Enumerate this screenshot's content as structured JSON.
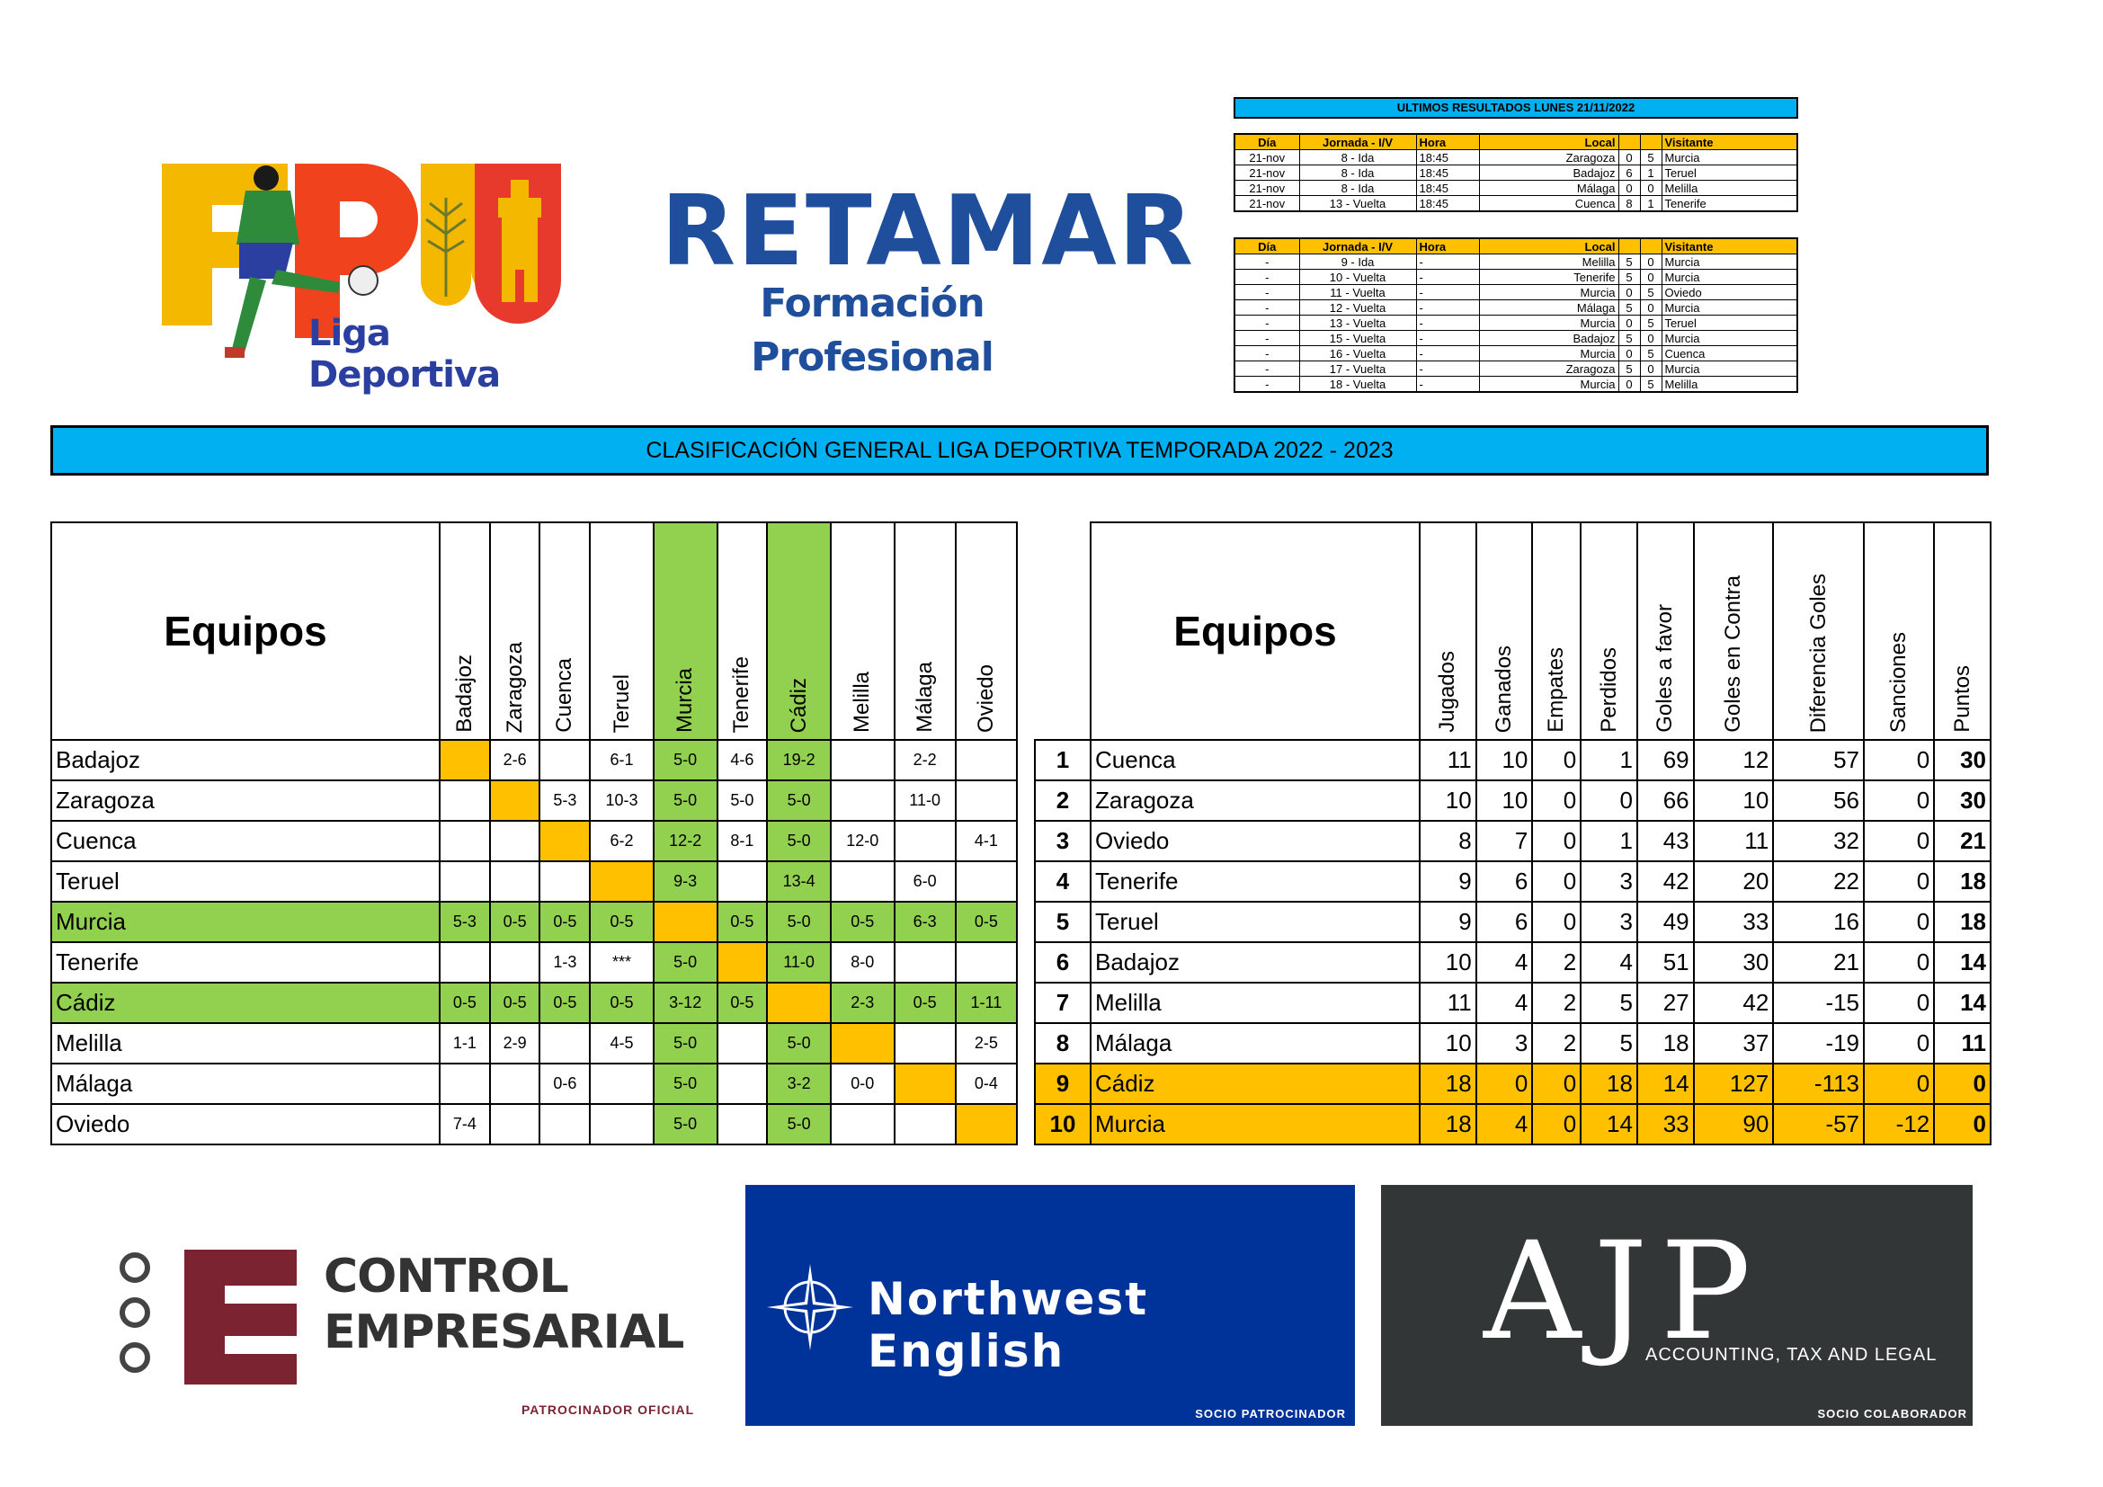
{
  "logos": {
    "fpu_letters": "FPU",
    "fpu_sub": "Liga Deportiva",
    "retamar_title": "RETAMAR",
    "retamar_sub": "Formación Profesional"
  },
  "latest": {
    "title": "ULTIMOS RESULTADOS LUNES 21/11/2022",
    "headers": [
      "Día",
      "Jornada - I/V",
      "Hora",
      "Local",
      "",
      "",
      "Visitante"
    ],
    "rows": [
      [
        "21-nov",
        "8 - Ida",
        "18:45",
        "Zaragoza",
        "0",
        "5",
        "Murcia"
      ],
      [
        "21-nov",
        "8 - Ida",
        "18:45",
        "Badajoz",
        "6",
        "1",
        "Teruel"
      ],
      [
        "21-nov",
        "8 - Ida",
        "18:45",
        "Málaga",
        "0",
        "0",
        "Melilla"
      ],
      [
        "21-nov",
        "13 - Vuelta",
        "18:45",
        "Cuenca",
        "8",
        "1",
        "Tenerife"
      ]
    ]
  },
  "pending": {
    "headers": [
      "Día",
      "Jornada - I/V",
      "Hora",
      "Local",
      "",
      "",
      "Visitante"
    ],
    "rows": [
      [
        "-",
        "9 - Ida",
        "-",
        "Melilla",
        "5",
        "0",
        "Murcia"
      ],
      [
        "-",
        "10 - Vuelta",
        "-",
        "Tenerife",
        "5",
        "0",
        "Murcia"
      ],
      [
        "-",
        "11 - Vuelta",
        "-",
        "Murcia",
        "0",
        "5",
        "Oviedo"
      ],
      [
        "-",
        "12 - Vuelta",
        "-",
        "Málaga",
        "5",
        "0",
        "Murcia"
      ],
      [
        "-",
        "13 - Vuelta",
        "-",
        "Murcia",
        "0",
        "5",
        "Teruel"
      ],
      [
        "-",
        "15 - Vuelta",
        "-",
        "Badajoz",
        "5",
        "0",
        "Murcia"
      ],
      [
        "-",
        "16 - Vuelta",
        "-",
        "Murcia",
        "0",
        "5",
        "Cuenca"
      ],
      [
        "-",
        "17 - Vuelta",
        "-",
        "Zaragoza",
        "5",
        "0",
        "Murcia"
      ],
      [
        "-",
        "18 - Vuelta",
        "-",
        "Murcia",
        "0",
        "5",
        "Melilla"
      ]
    ]
  },
  "classification_title": "CLASIFICACIÓN GENERAL LIGA DEPORTIVA TEMPORADA 2022 - 2023",
  "matrix": {
    "header": "Equipos",
    "teams": [
      "Badajoz",
      "Zaragoza",
      "Cuenca",
      "Teruel",
      "Murcia",
      "Tenerife",
      "Cádiz",
      "Melilla",
      "Málaga",
      "Oviedo"
    ],
    "highlight_color": "#92d050",
    "diagonal_color": "#ffc000",
    "rows": [
      [
        "",
        "2-6",
        "",
        "6-1",
        "5-0",
        "4-6",
        "19-2",
        "",
        "2-2",
        ""
      ],
      [
        "",
        "",
        "5-3",
        "10-3",
        "5-0",
        "5-0",
        "5-0",
        "",
        "11-0",
        ""
      ],
      [
        "",
        "",
        "",
        "6-2",
        "12-2",
        "8-1",
        "5-0",
        "12-0",
        "",
        "4-1"
      ],
      [
        "",
        "",
        "",
        "",
        "9-3",
        "",
        "13-4",
        "",
        "6-0",
        ""
      ],
      [
        "5-3",
        "0-5",
        "0-5",
        "0-5",
        "",
        "0-5",
        "5-0",
        "0-5",
        "6-3",
        "0-5"
      ],
      [
        "",
        "",
        "1-3",
        "***",
        "5-0",
        "",
        "11-0",
        "8-0",
        "",
        ""
      ],
      [
        "0-5",
        "0-5",
        "0-5",
        "0-5",
        "3-12",
        "0-5",
        "",
        "2-3",
        "0-5",
        "1-11"
      ],
      [
        "1-1",
        "2-9",
        "",
        "4-5",
        "5-0",
        "",
        "5-0",
        "",
        "",
        "2-5"
      ],
      [
        "",
        "",
        "0-6",
        "",
        "5-0",
        "",
        "3-2",
        "0-0",
        "",
        "0-4"
      ],
      [
        "7-4",
        "",
        "",
        "",
        "5-0",
        "",
        "5-0",
        "",
        "",
        ""
      ]
    ]
  },
  "standings": {
    "header": "Equipos",
    "columns": [
      "Jugados",
      "Ganados",
      "Empates",
      "Perdidos",
      "Goles a favor",
      "Goles en Contra",
      "Diferencia Goles",
      "Sanciones",
      "Puntos"
    ],
    "highlight_color": "#ffc000",
    "rows": [
      {
        "pos": "1",
        "team": "Cuenca",
        "vals": [
          "11",
          "10",
          "0",
          "1",
          "69",
          "12",
          "57",
          "0",
          "30"
        ]
      },
      {
        "pos": "2",
        "team": "Zaragoza",
        "vals": [
          "10",
          "10",
          "0",
          "0",
          "66",
          "10",
          "56",
          "0",
          "30"
        ]
      },
      {
        "pos": "3",
        "team": "Oviedo",
        "vals": [
          "8",
          "7",
          "0",
          "1",
          "43",
          "11",
          "32",
          "0",
          "21"
        ]
      },
      {
        "pos": "4",
        "team": "Tenerife",
        "vals": [
          "9",
          "6",
          "0",
          "3",
          "42",
          "20",
          "22",
          "0",
          "18"
        ]
      },
      {
        "pos": "5",
        "team": "Teruel",
        "vals": [
          "9",
          "6",
          "0",
          "3",
          "49",
          "33",
          "16",
          "0",
          "18"
        ]
      },
      {
        "pos": "6",
        "team": "Badajoz",
        "vals": [
          "10",
          "4",
          "2",
          "4",
          "51",
          "30",
          "21",
          "0",
          "14"
        ]
      },
      {
        "pos": "7",
        "team": "Melilla",
        "vals": [
          "11",
          "4",
          "2",
          "5",
          "27",
          "42",
          "-15",
          "0",
          "14"
        ]
      },
      {
        "pos": "8",
        "team": "Málaga",
        "vals": [
          "10",
          "3",
          "2",
          "5",
          "18",
          "37",
          "-19",
          "0",
          "11"
        ]
      },
      {
        "pos": "9",
        "team": "Cádiz",
        "vals": [
          "18",
          "0",
          "0",
          "18",
          "14",
          "127",
          "-113",
          "0",
          "0"
        ]
      },
      {
        "pos": "10",
        "team": "Murcia",
        "vals": [
          "18",
          "4",
          "0",
          "14",
          "33",
          "90",
          "-57",
          "-12",
          "0"
        ]
      }
    ]
  },
  "sponsors": {
    "control_line1": "CONTROL",
    "control_line2": "EMPRESARIAL",
    "control_tag": "PATROCINADOR OFICIAL",
    "northwest_name": "Northwest English",
    "northwest_tag": "SOCIO PATROCINADOR",
    "ajp_name": "AJP",
    "ajp_sub": "ACCOUNTING, TAX AND LEGAL",
    "ajp_tag": "SOCIO COLABORADOR"
  }
}
